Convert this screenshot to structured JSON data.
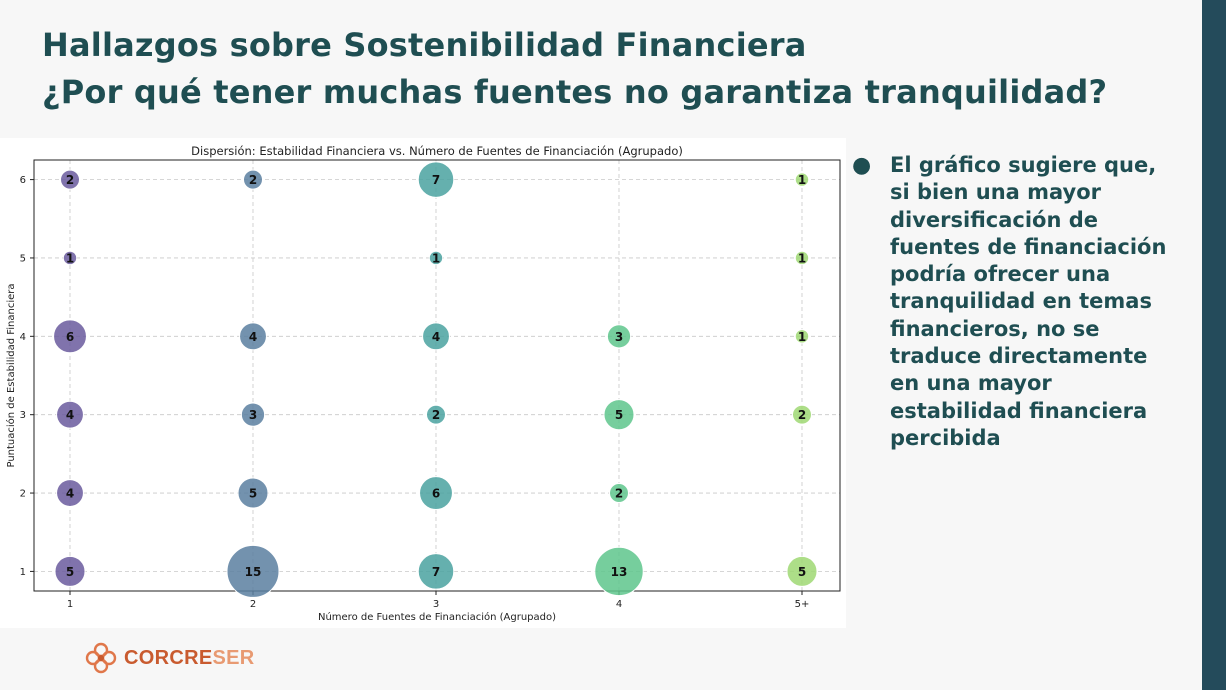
{
  "slide": {
    "title_line1": "Hallazgos sobre Sostenibilidad Financiera",
    "title_line2": "¿Por qué tener muchas fuentes no garantiza tranquilidad?",
    "bullet_symbol": "●",
    "bullet_text": "El gráfico sugiere que, si bien una mayor diversificación de fuentes de financiación podría ofrecer una tranquilidad en temas financieros, no se traduce directamente en una mayor estabilidad financiera percibida",
    "logo_text_a": "CORCRE",
    "logo_text_b": "SER",
    "logo_icon": "flower-logo-icon"
  },
  "colors": {
    "title": "#1f4e52",
    "right_band": "#244b5b",
    "logo_a": "#c95b2f",
    "logo_b": "#e89a72",
    "category_colors": [
      "#6a5b9e",
      "#5a7fa0",
      "#4aa2a0",
      "#5ec68c",
      "#9fd873"
    ]
  },
  "chart_data": {
    "type": "scatter",
    "title": "Dispersión: Estabilidad Financiera vs. Número de Fuentes de Financiación (Agrupado)",
    "xlabel": "Número de Fuentes de Financiación (Agrupado)",
    "ylabel": "Puntuación de Estabilidad Financiera",
    "categories": [
      "1",
      "2",
      "3",
      "4",
      "5+"
    ],
    "yticks": [
      "1",
      "2",
      "3",
      "4",
      "5",
      "6"
    ],
    "ylim": [
      0.75,
      6.25
    ],
    "grid": true,
    "points": [
      {
        "x": "1",
        "y": 6,
        "count": 2
      },
      {
        "x": "1",
        "y": 5,
        "count": 1
      },
      {
        "x": "1",
        "y": 4,
        "count": 6
      },
      {
        "x": "1",
        "y": 3,
        "count": 4
      },
      {
        "x": "1",
        "y": 2,
        "count": 4
      },
      {
        "x": "1",
        "y": 1,
        "count": 5
      },
      {
        "x": "2",
        "y": 6,
        "count": 2
      },
      {
        "x": "2",
        "y": 4,
        "count": 4
      },
      {
        "x": "2",
        "y": 3,
        "count": 3
      },
      {
        "x": "2",
        "y": 2,
        "count": 5
      },
      {
        "x": "2",
        "y": 1,
        "count": 15
      },
      {
        "x": "3",
        "y": 6,
        "count": 7
      },
      {
        "x": "3",
        "y": 5,
        "count": 1
      },
      {
        "x": "3",
        "y": 4,
        "count": 4
      },
      {
        "x": "3",
        "y": 3,
        "count": 2
      },
      {
        "x": "3",
        "y": 2,
        "count": 6
      },
      {
        "x": "3",
        "y": 1,
        "count": 7
      },
      {
        "x": "4",
        "y": 4,
        "count": 3
      },
      {
        "x": "4",
        "y": 3,
        "count": 5
      },
      {
        "x": "4",
        "y": 2,
        "count": 2
      },
      {
        "x": "4",
        "y": 1,
        "count": 13
      },
      {
        "x": "5+",
        "y": 6,
        "count": 1
      },
      {
        "x": "5+",
        "y": 5,
        "count": 1
      },
      {
        "x": "5+",
        "y": 4,
        "count": 1
      },
      {
        "x": "5+",
        "y": 3,
        "count": 2
      },
      {
        "x": "5+",
        "y": 1,
        "count": 5
      }
    ]
  }
}
